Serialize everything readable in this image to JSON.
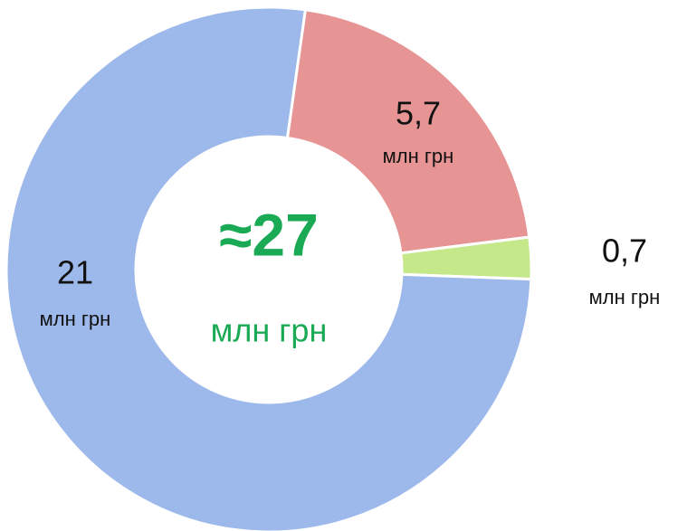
{
  "chart_data": {
    "type": "donut",
    "values": [
      5.7,
      0.7,
      21
    ],
    "value_labels": [
      "5,7",
      "0,7",
      "21"
    ],
    "unit": "млн грн",
    "colors": [
      "#e69494",
      "#c5e88a",
      "#9db8ea"
    ],
    "center_label": "≈27",
    "center_color": "#1aaa55"
  }
}
